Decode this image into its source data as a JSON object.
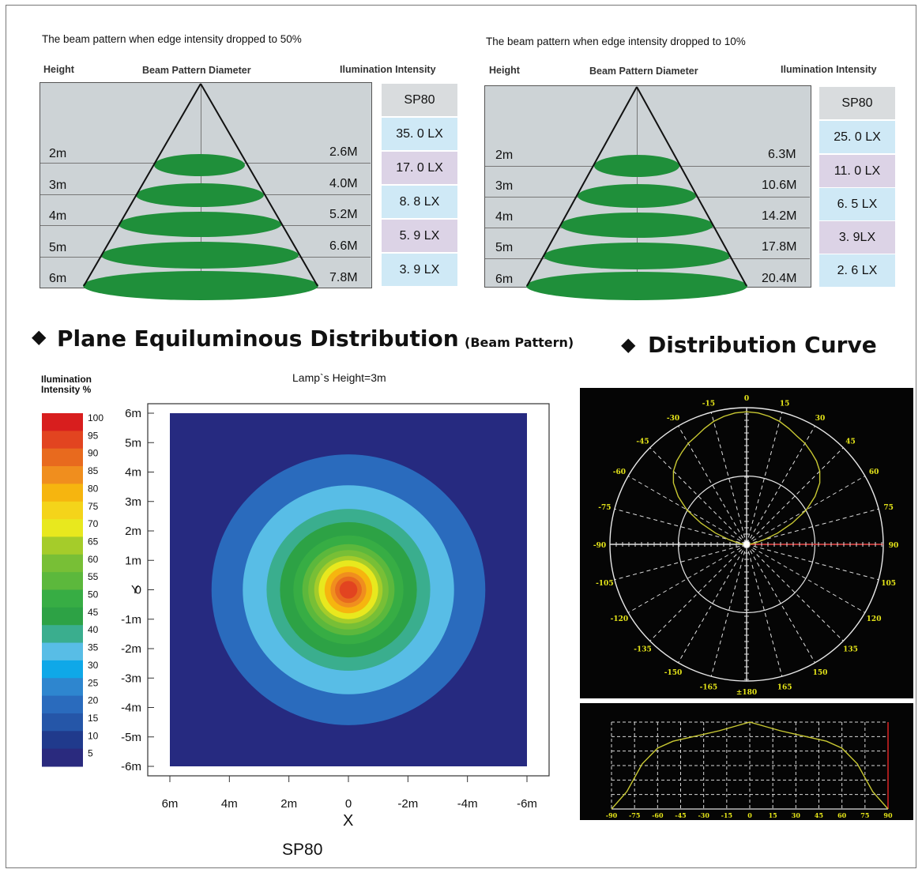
{
  "beam_left": {
    "title": "The beam pattern when edge intensity dropped to 50%",
    "col_height": "Height",
    "col_diameter": "Beam Pattern Diameter",
    "col_intensity": "Ilumination Intensity",
    "model": "SP80",
    "heights": [
      "2m",
      "3m",
      "4m",
      "5m",
      "6m"
    ],
    "diameters": [
      "2.6M",
      "4.0M",
      "5.2M",
      "6.6M",
      "7.8M"
    ],
    "intensities": [
      "35. 0 LX",
      "17. 0 LX",
      "8. 8 LX",
      "5. 9 LX",
      "3. 9 LX"
    ]
  },
  "beam_right": {
    "title": "The beam pattern when edge intensity dropped to 10%",
    "col_height": "Height",
    "col_diameter": "Beam Pattern Diameter",
    "col_intensity": "Ilumination Intensity",
    "model": "SP80",
    "heights": [
      "2m",
      "3m",
      "4m",
      "5m",
      "6m"
    ],
    "diameters": [
      "6.3M",
      "10.6M",
      "14.2M",
      "17.8M",
      "20.4M"
    ],
    "intensities": [
      "25. 0 LX",
      "11. 0 LX",
      "6. 5 LX",
      "3. 9LX",
      "2. 6 LX"
    ]
  },
  "headings": {
    "plane_bullet": "◆",
    "plane_title": "Plane Equiluminous Distribution",
    "plane_sub": "(Beam Pattern)",
    "curve_bullet": "◆",
    "curve_title": "Distribution Curve"
  },
  "colors": {
    "ellipse_green": "#1f8f3a",
    "blue_cell": "#cfe9f6",
    "purple_cell": "#dcd3e6",
    "polar_curve": "#c8c832",
    "polar_label": "#e6e619",
    "red_axis": "#cc2222"
  },
  "chart_data": [
    {
      "type": "heatmap",
      "title": "Lamp`s Height=3m",
      "caption": "SP80",
      "xlabel": "X",
      "ylabel": "Y",
      "legend_title": "Ilumination Intensity %",
      "x_ticks": [
        "6m",
        "4m",
        "2m",
        "0",
        "-2m",
        "-4m",
        "-6m"
      ],
      "y_ticks": [
        "6m",
        "5m",
        "4m",
        "3m",
        "2m",
        "1m",
        "0",
        "-1m",
        "-2m",
        "-3m",
        "-4m",
        "-5m",
        "-6m"
      ],
      "xlim": [
        6,
        -6
      ],
      "ylim": [
        -6,
        6
      ],
      "levels": [
        5,
        10,
        15,
        20,
        25,
        30,
        35,
        40,
        45,
        50,
        55,
        60,
        65,
        70,
        75,
        80,
        85,
        90,
        95,
        100
      ],
      "level_colors": [
        "#2a2a7e",
        "#203a8c",
        "#2556a8",
        "#2a6bbd",
        "#2e86cf",
        "#0fa8e8",
        "#58bde6",
        "#3aae8e",
        "#2da245",
        "#37ad44",
        "#5cb83c",
        "#78bf36",
        "#a5cc2a",
        "#e8e81e",
        "#f4d41a",
        "#f6b50f",
        "#f08e1e",
        "#e86a1e",
        "#e24420",
        "#d81e1e"
      ],
      "contours_radius_m": {
        "20": 4.6,
        "35": 3.55,
        "40": 2.75,
        "45": 2.3,
        "50": 1.85,
        "55": 1.55,
        "60": 1.35,
        "65": 1.15,
        "70": 1.0,
        "80": 0.8,
        "85": 0.6,
        "90": 0.45,
        "95": 0.3
      }
    },
    {
      "type": "polar",
      "title": "",
      "angle_labels": [
        "0",
        "15",
        "30",
        "45",
        "60",
        "75",
        "90",
        "105",
        "120",
        "135",
        "150",
        "165",
        "±180",
        "-165",
        "-150",
        "-135",
        "-120",
        "-105",
        "-90",
        "-75",
        "-60",
        "-45",
        "-30",
        "-15"
      ],
      "angles_deg": [
        0,
        5,
        10,
        15,
        20,
        25,
        30,
        35,
        40,
        45,
        50,
        55,
        60,
        65,
        70,
        75,
        80,
        85,
        90
      ],
      "relative_intensity": [
        1.0,
        0.995,
        0.98,
        0.96,
        0.93,
        0.9,
        0.88,
        0.85,
        0.82,
        0.78,
        0.72,
        0.63,
        0.52,
        0.38,
        0.25,
        0.14,
        0.07,
        0.03,
        0.0
      ]
    },
    {
      "type": "line",
      "title": "",
      "x_ticks": [
        "-90",
        "-75",
        "-60",
        "-45",
        "-30",
        "-15",
        "0",
        "15",
        "30",
        "45",
        "60",
        "75",
        "90"
      ],
      "x": [
        -90,
        -80,
        -70,
        -60,
        -50,
        -40,
        -30,
        -20,
        -10,
        0,
        10,
        20,
        30,
        40,
        50,
        60,
        70,
        80,
        90
      ],
      "values": [
        0.0,
        0.2,
        0.52,
        0.7,
        0.78,
        0.82,
        0.86,
        0.9,
        0.95,
        1.0,
        0.95,
        0.9,
        0.86,
        0.82,
        0.78,
        0.7,
        0.52,
        0.2,
        0.0
      ],
      "xlim": [
        -90,
        90
      ],
      "ylim": [
        0,
        1
      ]
    }
  ]
}
